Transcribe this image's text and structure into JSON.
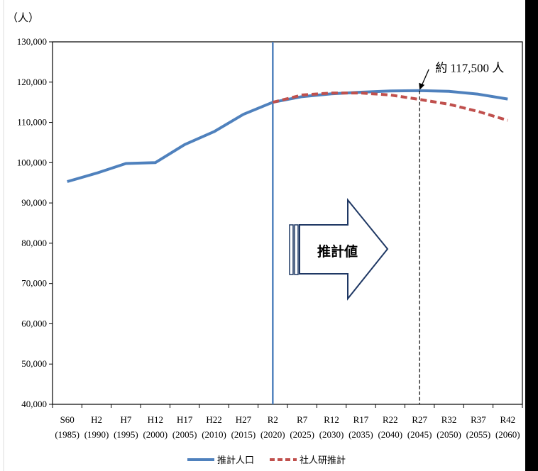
{
  "chart_data": {
    "type": "line",
    "ylabel": "（人）",
    "ylim": [
      40000,
      130000
    ],
    "yticks": [
      40000,
      50000,
      60000,
      70000,
      80000,
      90000,
      100000,
      110000,
      120000,
      130000
    ],
    "ytick_labels": [
      "40,000",
      "50,000",
      "60,000",
      "70,000",
      "80,000",
      "90,000",
      "100,000",
      "110,000",
      "120,000",
      "130,000"
    ],
    "categories": [
      {
        "era": "S60",
        "year": "(1985)"
      },
      {
        "era": "H2",
        "year": "(1990)"
      },
      {
        "era": "H7",
        "year": "(1995)"
      },
      {
        "era": "H12",
        "year": "(2000)"
      },
      {
        "era": "H17",
        "year": "(2005)"
      },
      {
        "era": "H22",
        "year": "(2010)"
      },
      {
        "era": "H27",
        "year": "(2015)"
      },
      {
        "era": "R2",
        "year": "(2020)"
      },
      {
        "era": "R7",
        "year": "(2025)"
      },
      {
        "era": "R12",
        "year": "(2030)"
      },
      {
        "era": "R17",
        "year": "(2035)"
      },
      {
        "era": "R22",
        "year": "(2040)"
      },
      {
        "era": "R27",
        "year": "(2045)"
      },
      {
        "era": "R32",
        "year": "(2050)"
      },
      {
        "era": "R37",
        "year": "(2055)"
      },
      {
        "era": "R42",
        "year": "(2060)"
      }
    ],
    "series": [
      {
        "name": "推計人口",
        "color": "#4f81bd",
        "style": "solid",
        "values": [
          95300,
          97400,
          99800,
          100000,
          104500,
          107700,
          112000,
          115000,
          116400,
          117100,
          117500,
          117800,
          117900,
          117700,
          117000,
          115800
        ]
      },
      {
        "name": "社人研推計",
        "color": "#c0504d",
        "style": "dashed",
        "values": [
          null,
          null,
          null,
          null,
          null,
          null,
          null,
          115000,
          116800,
          117300,
          117300,
          116800,
          115700,
          114500,
          112700,
          110500
        ]
      }
    ],
    "divider_category": "R2",
    "annotation": {
      "text": "約 117,500 人",
      "category": "R27"
    },
    "arrow_label": "推計値",
    "grid": false,
    "legend_position": "bottom"
  }
}
